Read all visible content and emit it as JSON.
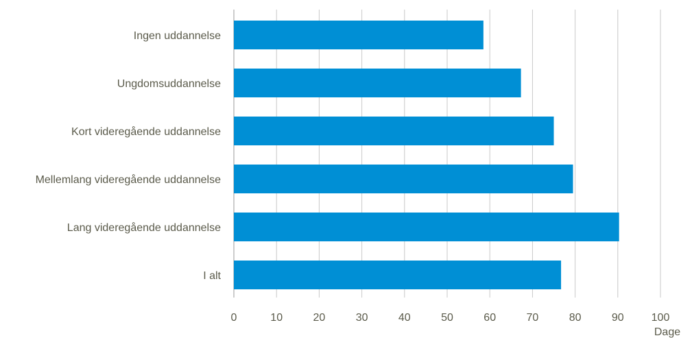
{
  "chart_data": {
    "type": "bar",
    "orientation": "horizontal",
    "categories": [
      "Ingen uddannelse",
      "Ungdomsuddannelse",
      "Kort videregående uddannelse",
      "Mellemlang videregående uddannelse",
      "Lang videregående uddannelse",
      "I alt"
    ],
    "values": [
      58.5,
      67.3,
      75.0,
      79.5,
      90.3,
      76.7
    ],
    "xlabel": "Dage",
    "ylabel": "",
    "xlim": [
      0,
      100
    ],
    "xticks": [
      "0",
      "10",
      "20",
      "30",
      "40",
      "50",
      "60",
      "70",
      "80",
      "90",
      "100"
    ],
    "bar_color": "#008fd5",
    "grid": "vertical",
    "legend": "none"
  }
}
